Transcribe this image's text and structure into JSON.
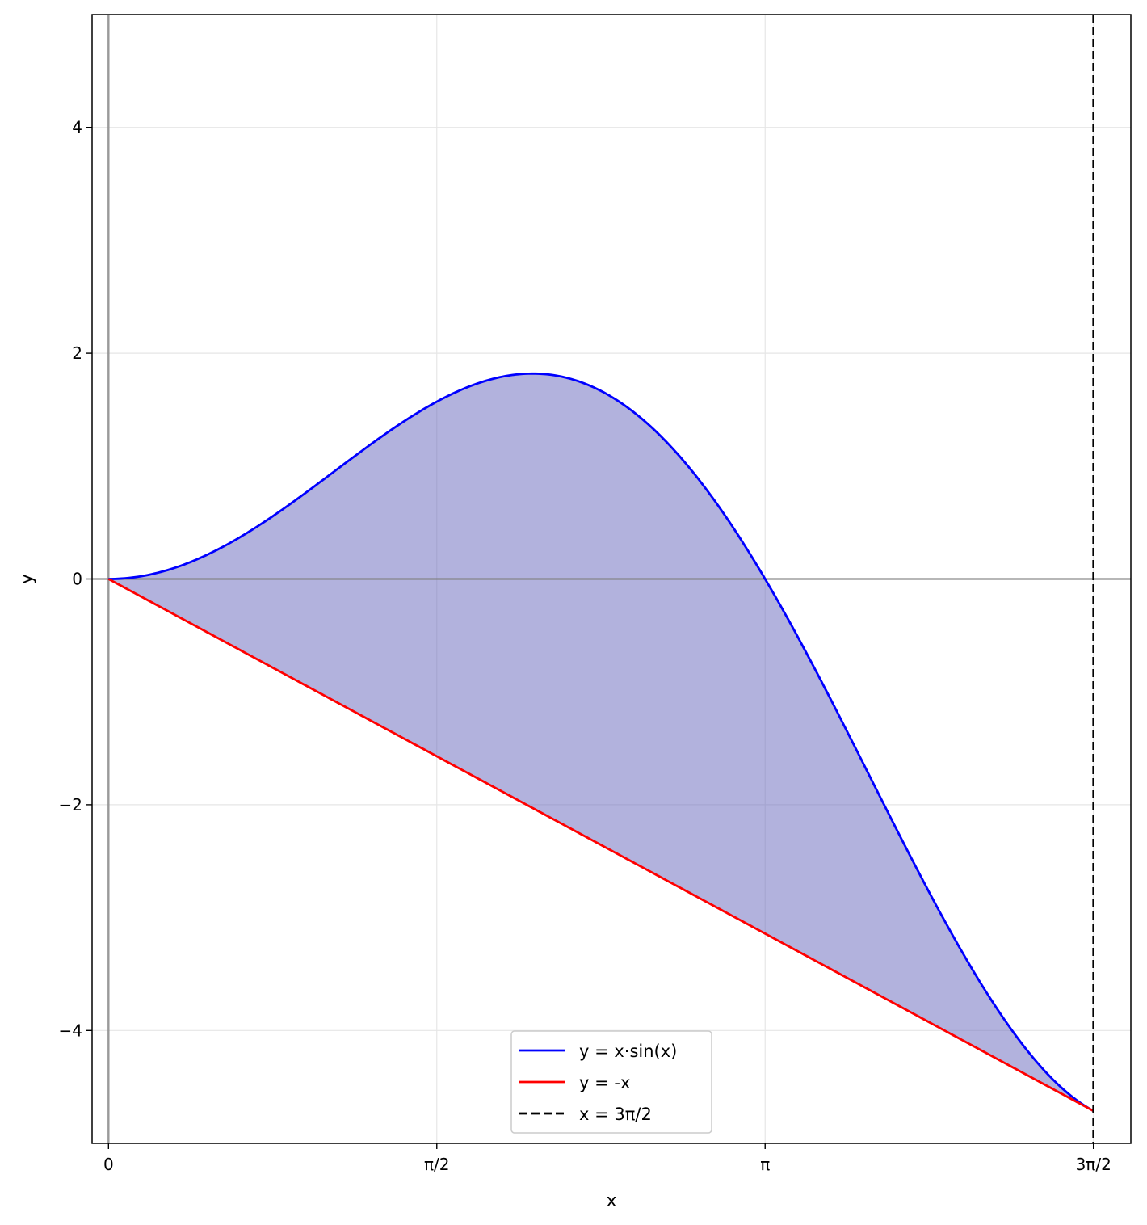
{
  "chart_data": {
    "type": "line",
    "title": "",
    "xlabel": "x",
    "ylabel": "y",
    "xlim": [
      -0.0785,
      4.8914
    ],
    "ylim": [
      -5.0,
      5.0
    ],
    "x_ticks": [
      {
        "value": 0,
        "label": "0"
      },
      {
        "value": 1.5708,
        "label": "π/2"
      },
      {
        "value": 3.1416,
        "label": "π"
      },
      {
        "value": 4.7124,
        "label": "3π/2"
      }
    ],
    "y_ticks": [
      {
        "value": -4,
        "label": "−4"
      },
      {
        "value": -2,
        "label": "−2"
      },
      {
        "value": 0,
        "label": "0"
      },
      {
        "value": 2,
        "label": "2"
      },
      {
        "value": 4,
        "label": "4"
      }
    ],
    "grid": true,
    "legend_position": "bottom-center",
    "series": [
      {
        "name": "y = x·sin(x)",
        "function": "x*sin(x)",
        "domain": [
          0,
          4.7124
        ],
        "color": "#0000ff",
        "style": "solid"
      },
      {
        "name": "y = -x",
        "function": "-x",
        "domain": [
          0,
          4.7124
        ],
        "color": "#ff0000",
        "style": "solid"
      },
      {
        "name": "x = 3π/2",
        "vertical_at": 4.7124,
        "color": "#000000",
        "style": "dashed"
      }
    ],
    "fill_between": {
      "upper": "x*sin(x)",
      "lower": "-x",
      "domain": [
        0,
        4.7124
      ],
      "color": "#6666bb",
      "opacity": 0.5
    },
    "reference_lines": {
      "x0": true,
      "y0": true,
      "color": "#808080"
    }
  }
}
